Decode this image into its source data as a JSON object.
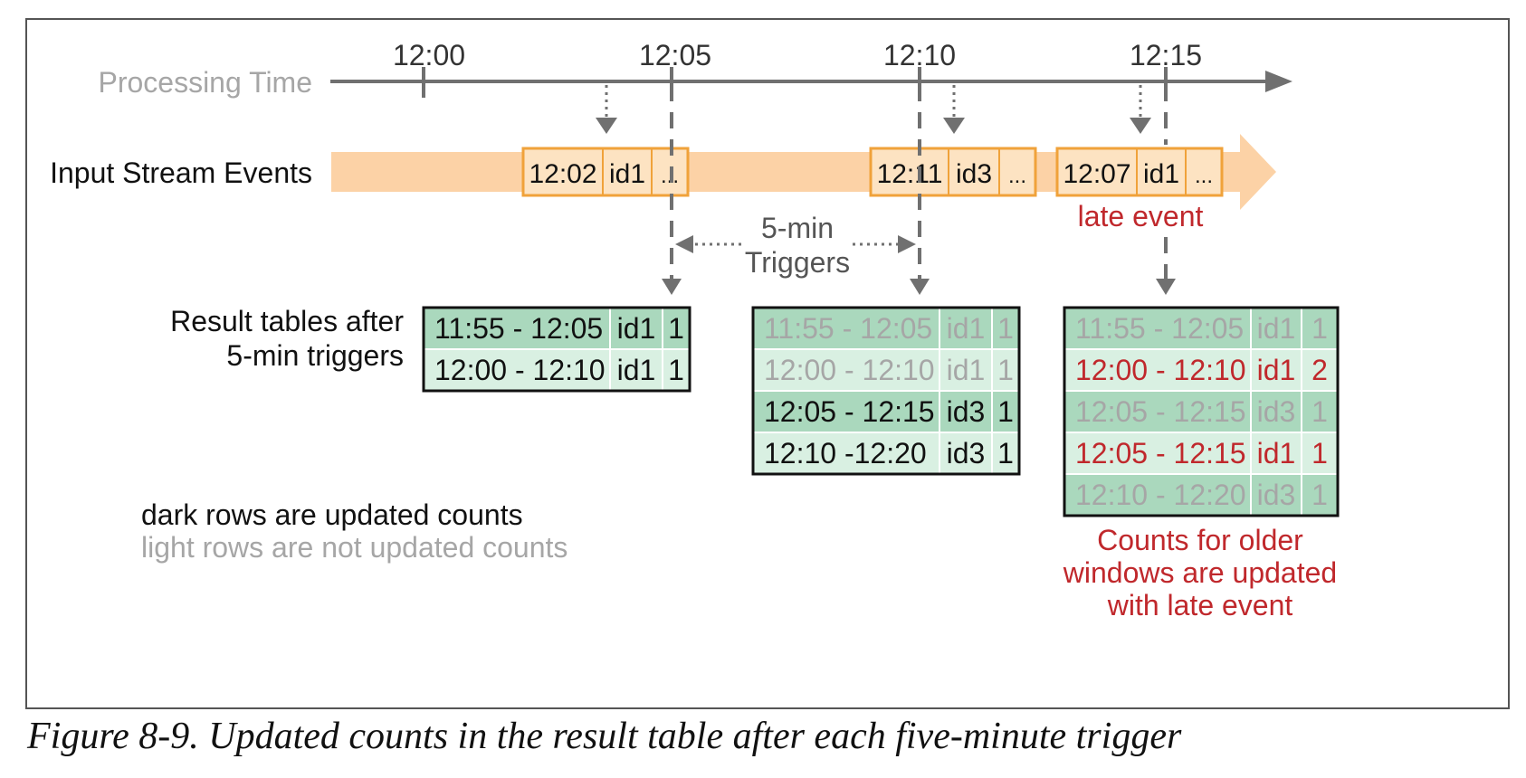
{
  "timeline": {
    "label": "Processing Time",
    "ticks": [
      "12:00",
      "12:05",
      "12:10",
      "12:15"
    ]
  },
  "stream": {
    "label": "Input Stream Events",
    "events": [
      {
        "time": "12:02",
        "id": "id1",
        "more": "..."
      },
      {
        "time": "12:11",
        "id": "id3",
        "more": "..."
      },
      {
        "time": "12:07",
        "id": "id1",
        "more": "..."
      }
    ],
    "late_label": "late event"
  },
  "trigger": {
    "line1": "5-min",
    "line2": "Triggers"
  },
  "results_label": {
    "line1": "Result tables after",
    "line2": "5-min triggers"
  },
  "tables": [
    {
      "rows": [
        {
          "window": "11:55 - 12:05",
          "id": "id1",
          "count": "1",
          "state": "updated"
        },
        {
          "window": "12:00 - 12:10",
          "id": "id1",
          "count": "1",
          "state": "updated"
        }
      ]
    },
    {
      "rows": [
        {
          "window": "11:55 - 12:05",
          "id": "id1",
          "count": "1",
          "state": "not-updated"
        },
        {
          "window": "12:00 - 12:10",
          "id": "id1",
          "count": "1",
          "state": "not-updated"
        },
        {
          "window": "12:05 - 12:15",
          "id": "id3",
          "count": "1",
          "state": "updated"
        },
        {
          "window": "12:10 -12:20",
          "id": "id3",
          "count": "1",
          "state": "updated"
        }
      ]
    },
    {
      "rows": [
        {
          "window": "11:55 - 12:05",
          "id": "id1",
          "count": "1",
          "state": "not-updated"
        },
        {
          "window": "12:00 - 12:10",
          "id": "id1",
          "count": "2",
          "state": "late-updated"
        },
        {
          "window": "12:05 - 12:15",
          "id": "id3",
          "count": "1",
          "state": "not-updated"
        },
        {
          "window": "12:05 - 12:15",
          "id": "id1",
          "count": "1",
          "state": "late-updated"
        },
        {
          "window": "12:10 -  12:20",
          "id": "id3",
          "count": "1",
          "state": "not-updated"
        }
      ]
    }
  ],
  "legend": {
    "dark": "dark rows are updated counts",
    "light": "light rows are not updated counts"
  },
  "note": {
    "line1": "Counts for older",
    "line2": "windows are updated",
    "line3": "with late event"
  },
  "caption": "Figure 8-9. Updated counts in the result table after each five-minute trigger",
  "colors": {
    "stream_band": "#fcd2a6",
    "event_border": "#f0a23a",
    "event_fill": "#fde3c2",
    "row_dark": "#aad8bd",
    "row_light": "#d9f0e2",
    "late_text": "#c0282c",
    "muted_text": "#a6a6a6",
    "axis": "#777777"
  }
}
